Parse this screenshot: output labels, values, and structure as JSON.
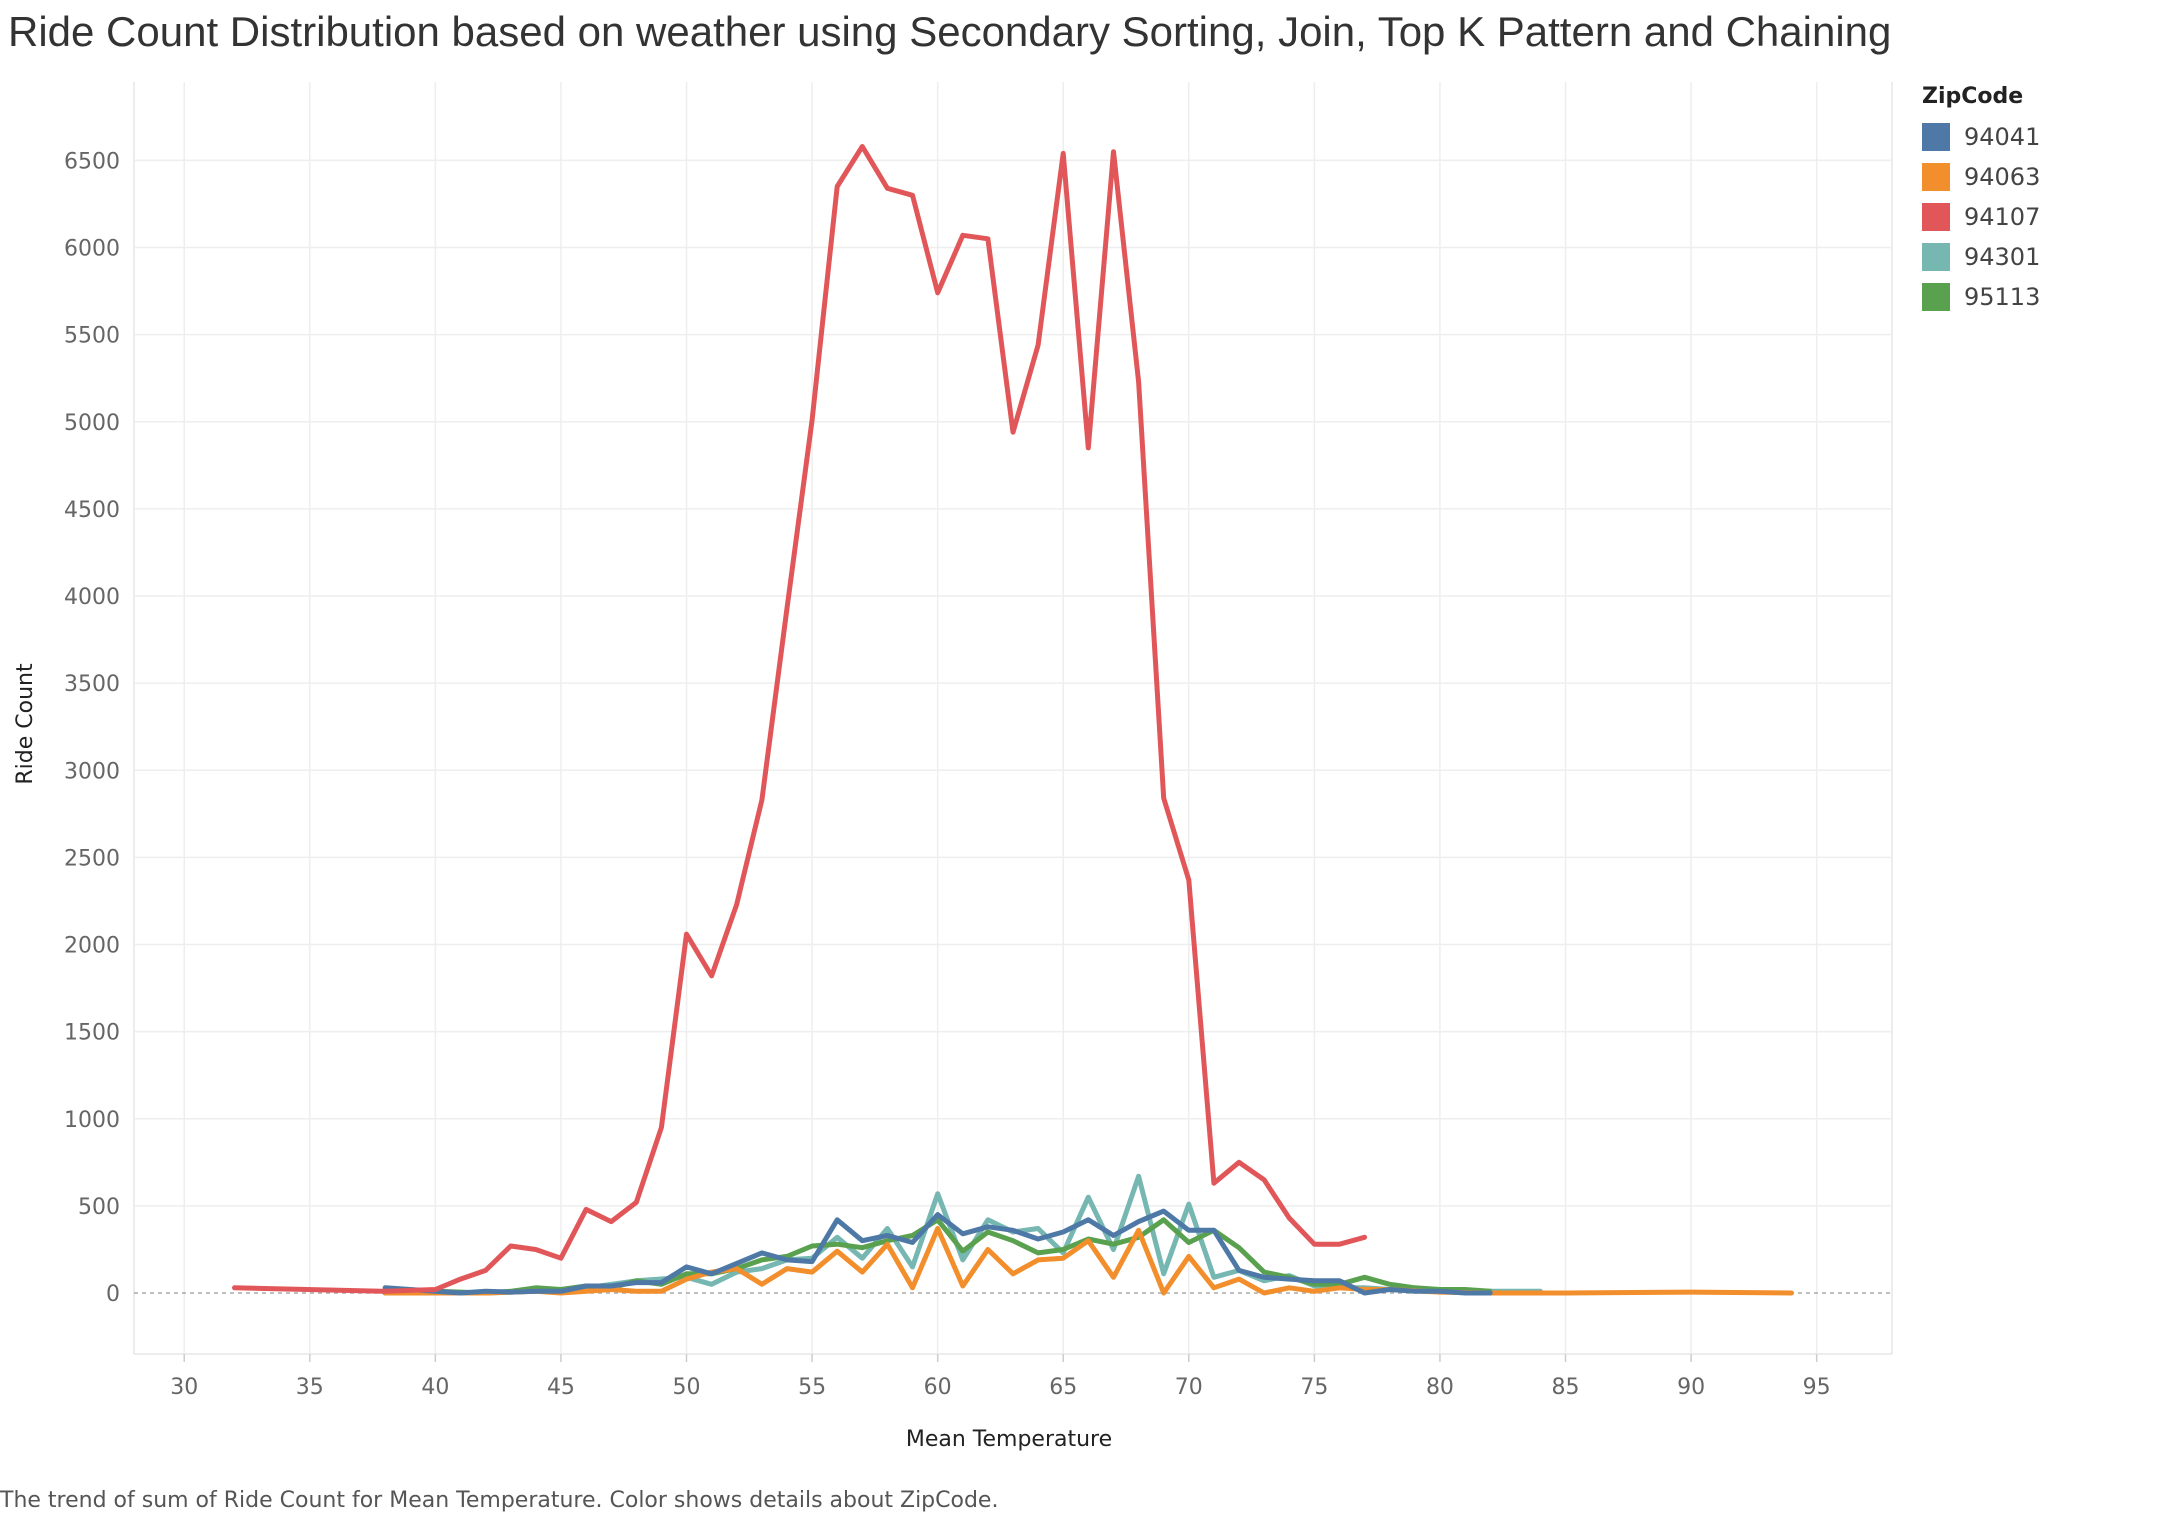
{
  "chart_data": {
    "type": "line",
    "title": "Ride Count Distribution based on weather using Secondary Sorting, Join, Top K Pattern and Chaining",
    "xlabel": "Mean Temperature",
    "ylabel": "Ride Count",
    "xlim": [
      28,
      98
    ],
    "ylim": [
      -350,
      6950
    ],
    "x_ticks": [
      "30",
      "35",
      "40",
      "45",
      "50",
      "55",
      "60",
      "65",
      "70",
      "75",
      "80",
      "85",
      "90",
      "95"
    ],
    "y_ticks": [
      "0",
      "500",
      "1000",
      "1500",
      "2000",
      "2500",
      "3000",
      "3500",
      "4000",
      "4500",
      "5000",
      "5500",
      "6000",
      "6500"
    ],
    "grid": true,
    "legend": {
      "title": "ZipCode",
      "position": "top-right"
    },
    "caption": "The trend of sum of Ride Count for Mean Temperature.  Color shows details about ZipCode.",
    "series": [
      {
        "name": "94107",
        "color": "#E15759",
        "x": [
          32,
          38,
          40,
          41,
          42,
          43,
          44,
          45,
          46,
          47,
          48,
          49,
          50,
          51,
          52,
          53,
          54,
          55,
          56,
          57,
          58,
          59,
          60,
          61,
          62,
          63,
          64,
          65,
          66,
          67,
          68,
          69,
          70,
          71,
          72,
          73,
          74,
          75,
          76,
          77
        ],
        "y": [
          30,
          10,
          20,
          80,
          130,
          270,
          250,
          200,
          480,
          410,
          520,
          950,
          2060,
          1820,
          2230,
          2830,
          3930,
          5010,
          6350,
          6580,
          6340,
          6300,
          5740,
          6070,
          6050,
          4940,
          5440,
          6540,
          4850,
          6550,
          5230,
          2840,
          2370,
          630,
          750,
          650,
          430,
          280,
          280,
          320
        ]
      },
      {
        "name": "94041",
        "color": "#4E79A7",
        "x": [
          38,
          39,
          40,
          41,
          42,
          43,
          44,
          45,
          46,
          47,
          48,
          49,
          50,
          51,
          52,
          53,
          54,
          55,
          56,
          57,
          58,
          59,
          60,
          61,
          62,
          63,
          64,
          65,
          66,
          67,
          68,
          69,
          70,
          71,
          72,
          73,
          74,
          75,
          76,
          77,
          78,
          79,
          80,
          81,
          82
        ],
        "y": [
          30,
          20,
          10,
          0,
          10,
          5,
          10,
          10,
          40,
          40,
          60,
          60,
          150,
          110,
          170,
          230,
          190,
          180,
          420,
          300,
          330,
          290,
          450,
          340,
          380,
          360,
          310,
          350,
          420,
          330,
          410,
          470,
          360,
          360,
          130,
          90,
          80,
          70,
          70,
          0,
          20,
          10,
          10,
          0,
          0
        ]
      },
      {
        "name": "94063",
        "color": "#F28E2B",
        "x": [
          38,
          40,
          42,
          44,
          45,
          46,
          47,
          48,
          49,
          50,
          51,
          52,
          53,
          54,
          55,
          56,
          57,
          58,
          59,
          60,
          61,
          62,
          63,
          64,
          65,
          66,
          67,
          68,
          69,
          70,
          71,
          72,
          73,
          74,
          75,
          76,
          77,
          78,
          80,
          82,
          85,
          90,
          94
        ],
        "y": [
          0,
          0,
          0,
          10,
          0,
          10,
          20,
          10,
          10,
          80,
          120,
          140,
          50,
          140,
          120,
          240,
          120,
          280,
          30,
          370,
          40,
          250,
          110,
          190,
          200,
          300,
          90,
          360,
          0,
          210,
          30,
          80,
          0,
          30,
          10,
          30,
          20,
          20,
          5,
          0,
          0,
          5,
          0
        ]
      },
      {
        "name": "94301",
        "color": "#76B7B2",
        "x": [
          40,
          42,
          44,
          46,
          48,
          50,
          51,
          52,
          53,
          54,
          55,
          56,
          57,
          58,
          59,
          60,
          61,
          62,
          63,
          64,
          65,
          66,
          67,
          68,
          69,
          70,
          71,
          72,
          73,
          74,
          75,
          76,
          77,
          78,
          80,
          82,
          84
        ],
        "y": [
          0,
          0,
          10,
          30,
          70,
          90,
          50,
          120,
          140,
          190,
          200,
          320,
          200,
          370,
          150,
          570,
          190,
          420,
          350,
          370,
          230,
          550,
          250,
          670,
          110,
          510,
          90,
          130,
          70,
          100,
          40,
          30,
          30,
          20,
          10,
          10,
          10
        ]
      },
      {
        "name": "95113",
        "color": "#59A14F",
        "x": [
          38,
          40,
          42,
          43,
          44,
          45,
          46,
          47,
          48,
          49,
          50,
          51,
          52,
          53,
          54,
          55,
          56,
          57,
          58,
          59,
          60,
          61,
          62,
          63,
          64,
          65,
          66,
          67,
          68,
          69,
          70,
          71,
          72,
          73,
          74,
          75,
          76,
          77,
          78,
          79,
          80,
          81,
          82
        ],
        "y": [
          0,
          10,
          0,
          10,
          30,
          20,
          40,
          30,
          70,
          50,
          110,
          110,
          140,
          190,
          210,
          270,
          280,
          260,
          300,
          330,
          420,
          240,
          350,
          300,
          230,
          250,
          310,
          280,
          320,
          420,
          290,
          360,
          260,
          120,
          90,
          50,
          50,
          90,
          50,
          30,
          20,
          20,
          10
        ]
      }
    ]
  }
}
